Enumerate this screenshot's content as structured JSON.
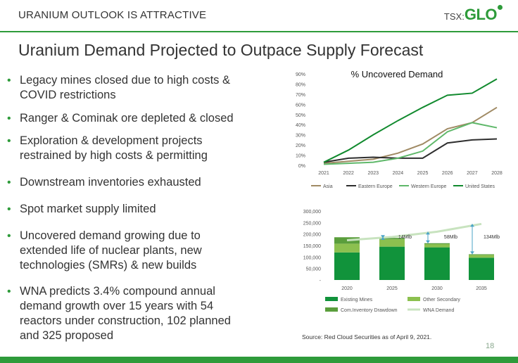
{
  "header": {
    "section_title": "URANIUM OUTLOOK IS ATTRACTIVE",
    "logo_prefix": "TSX:",
    "logo_name": "GLO",
    "brand_color": "#2e9b3a"
  },
  "slide_title": "Uranium Demand Projected to Outpace Supply Forecast",
  "bullets": [
    "Legacy mines closed due to high costs & COVID restrictions",
    "Ranger & Cominak ore depleted & closed",
    "Exploration & development projects restrained by high costs & permitting",
    "Downstream inventories exhausted",
    "Spot market supply limited",
    "Uncovered demand growing due to extended life of nuclear plants, new technologies (SMRs) & new builds",
    "WNA predicts 3.4% compound annual demand growth over 15 years with 54 reactors under construction, 102 planned and 325 proposed"
  ],
  "source": "Source: Red Cloud Securities as of April 9, 2021.",
  "page_number": "18",
  "chart_data": [
    {
      "type": "line",
      "title": "% Uncovered Demand",
      "x": [
        "2021",
        "2022",
        "2023",
        "2024",
        "2025",
        "2026",
        "2027",
        "2028"
      ],
      "y_ticks": [
        "0%",
        "10%",
        "20%",
        "30%",
        "40%",
        "50%",
        "60%",
        "70%",
        "80%",
        "90%"
      ],
      "ylim": [
        0,
        90
      ],
      "legend_position": "bottom",
      "grid": false,
      "series": [
        {
          "name": "Asia",
          "color": "#a08a64",
          "values": [
            2,
            4,
            6,
            12,
            21,
            36,
            42,
            57
          ]
        },
        {
          "name": "Eastern Europe",
          "color": "#2e2e2e",
          "values": [
            3,
            7,
            8,
            7,
            7,
            22,
            25,
            26
          ]
        },
        {
          "name": "Western Europe",
          "color": "#5fb86a",
          "values": [
            1,
            2,
            3,
            7,
            14,
            33,
            42,
            37
          ]
        },
        {
          "name": "United States",
          "color": "#118a2e",
          "values": [
            3,
            15,
            30,
            44,
            57,
            69,
            71,
            85
          ]
        }
      ]
    },
    {
      "type": "bar",
      "stacked": true,
      "categories": [
        "2020",
        "2025",
        "2030",
        "2035"
      ],
      "y_ticks": [
        "-",
        "50,000",
        "100,000",
        "150,000",
        "200,000",
        "250,000",
        "300,000"
      ],
      "ylim": [
        0,
        300000
      ],
      "legend_position": "bottom",
      "grid": false,
      "series": [
        {
          "name": "Existing Mines",
          "color": "#11933b",
          "values": [
            120000,
            145000,
            142000,
            97000
          ]
        },
        {
          "name": "Other Secondary",
          "color": "#8cc04f",
          "values": [
            38000,
            32000,
            14000,
            12000
          ]
        },
        {
          "name": "Com.Inventory Drawdown",
          "color": "#5a9e3c",
          "values": [
            28000,
            6000,
            4000,
            3000
          ]
        }
      ],
      "line_series": {
        "name": "WNA Demand",
        "color": "#c8e3bf",
        "values": [
          173000,
          187000,
          210000,
          244000
        ]
      },
      "annotations": [
        "14Mlb",
        "58Mlb",
        "134Mlb"
      ]
    }
  ]
}
